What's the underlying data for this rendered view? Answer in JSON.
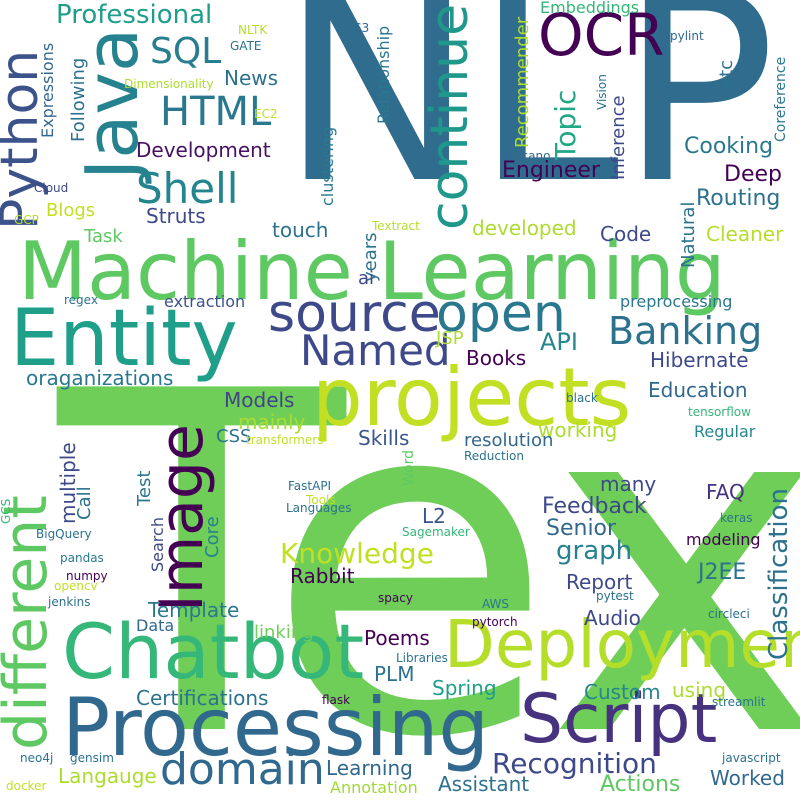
{
  "words": [
    {
      "text": "Text",
      "color": "#6ece58"
    },
    {
      "text": "NLP",
      "color": "#2f6c8e"
    },
    {
      "text": "Machine Learning",
      "color": "#5ec962"
    },
    {
      "text": "projects",
      "color": "#c2df23"
    },
    {
      "text": "Entity",
      "color": "#1f9e89"
    },
    {
      "text": "Processing",
      "color": "#31688e"
    },
    {
      "text": "Script",
      "color": "#46327e"
    },
    {
      "text": "Chatbot",
      "color": "#35b779"
    },
    {
      "text": "Deployment",
      "color": "#b5de2b"
    },
    {
      "text": "different",
      "color": "#5ec962"
    },
    {
      "text": "Image",
      "color": "#440154"
    },
    {
      "text": "Java",
      "color": "#26828e"
    },
    {
      "text": "Python",
      "color": "#3b528b"
    },
    {
      "text": "continue",
      "color": "#1f988b"
    },
    {
      "text": "OCR",
      "color": "#440154"
    },
    {
      "text": "source",
      "color": "#3e4989"
    },
    {
      "text": "open",
      "color": "#2a788e"
    },
    {
      "text": "domain",
      "color": "#31688e"
    },
    {
      "text": "Named",
      "color": "#3e4989"
    },
    {
      "text": "Banking",
      "color": "#2c728e"
    },
    {
      "text": "Shell",
      "color": "#25858e"
    },
    {
      "text": "HTML",
      "color": "#2a788e"
    },
    {
      "text": "SQL",
      "color": "#287d8e"
    },
    {
      "text": "Classification",
      "color": "#2c728e"
    },
    {
      "text": "Recognition",
      "color": "#3e4989"
    },
    {
      "text": "Knowledge",
      "color": "#c2df23"
    },
    {
      "text": "graph",
      "color": "#26828e"
    },
    {
      "text": "Professional",
      "color": "#1f9e89"
    },
    {
      "text": "Topic",
      "color": "#22a884"
    },
    {
      "text": "Engineer",
      "color": "#440154"
    },
    {
      "text": "Development",
      "color": "#471164"
    },
    {
      "text": "API",
      "color": "#24868e"
    },
    {
      "text": "Assistant",
      "color": "#2c728e"
    },
    {
      "text": "Actions",
      "color": "#5ec962"
    },
    {
      "text": "Cooking",
      "color": "#2a788e"
    },
    {
      "text": "Deep",
      "color": "#440154"
    },
    {
      "text": "Routing",
      "color": "#2c728e"
    },
    {
      "text": "Books",
      "color": "#440154"
    },
    {
      "text": "Hibernate",
      "color": "#3e4989"
    },
    {
      "text": "Education",
      "color": "#31688e"
    },
    {
      "text": "Models",
      "color": "#414487"
    },
    {
      "text": "mainly",
      "color": "#addc30"
    },
    {
      "text": "working",
      "color": "#addc30"
    },
    {
      "text": "Skills",
      "color": "#39568c"
    },
    {
      "text": "resolution",
      "color": "#31688e"
    },
    {
      "text": "Senior",
      "color": "#31688e"
    },
    {
      "text": "Feedback",
      "color": "#3e4989"
    },
    {
      "text": "FAQ",
      "color": "#46327e"
    },
    {
      "text": "Template",
      "color": "#2a788e"
    },
    {
      "text": "Rabbit",
      "color": "#440154"
    },
    {
      "text": "Report",
      "color": "#3e4989"
    },
    {
      "text": "J2EE",
      "color": "#2c728e"
    },
    {
      "text": "Audio",
      "color": "#3e4989"
    },
    {
      "text": "Custom",
      "color": "#24868e"
    },
    {
      "text": "Poems",
      "color": "#440154"
    },
    {
      "text": "Spring",
      "color": "#1f9e89"
    },
    {
      "text": "PLM",
      "color": "#2c728e"
    },
    {
      "text": "Certifications",
      "color": "#2c728e"
    },
    {
      "text": "oraganizations",
      "color": "#2a788e"
    },
    {
      "text": "extraction",
      "color": "#3b528b"
    },
    {
      "text": "preprocessing",
      "color": "#2a788e"
    },
    {
      "text": "Code",
      "color": "#3e4989"
    },
    {
      "text": "Cleaner",
      "color": "#b5de2b"
    },
    {
      "text": "developed",
      "color": "#addc30"
    },
    {
      "text": "touch",
      "color": "#2c728e"
    },
    {
      "text": "Task",
      "color": "#5ec962"
    },
    {
      "text": "Blogs",
      "color": "#c2df23"
    },
    {
      "text": "Struts",
      "color": "#3e4989"
    },
    {
      "text": "News",
      "color": "#2c728e"
    },
    {
      "text": "Langauge",
      "color": "#addc30"
    },
    {
      "text": "Learning",
      "color": "#31688e"
    },
    {
      "text": "Worked",
      "color": "#31688e"
    },
    {
      "text": "Annotation",
      "color": "#a0da39"
    },
    {
      "text": "using",
      "color": "#addc30"
    },
    {
      "text": "linking",
      "color": "#6ece58"
    },
    {
      "text": "many",
      "color": "#3e4989"
    },
    {
      "text": "modeling",
      "color": "#440154"
    },
    {
      "text": "Regular",
      "color": "#24868e"
    },
    {
      "text": "CSS",
      "color": "#2c728e"
    },
    {
      "text": "L2",
      "color": "#39568c"
    },
    {
      "text": "Core",
      "color": "#26828e"
    },
    {
      "text": "Data",
      "color": "#31688e"
    },
    {
      "text": "Call",
      "color": "#2c728e"
    },
    {
      "text": "Test",
      "color": "#2a788e"
    },
    {
      "text": "multiple",
      "color": "#3e4989"
    },
    {
      "text": "Search",
      "color": "#3e4989"
    },
    {
      "text": "years",
      "color": "#2c728e"
    },
    {
      "text": "ai",
      "color": "#3e4989"
    },
    {
      "text": "JSP",
      "color": "#addc30"
    },
    {
      "text": "Natural",
      "color": "#2c728e"
    },
    {
      "text": "Inference",
      "color": "#3e4989"
    },
    {
      "text": "Recommender",
      "color": "#addc30"
    },
    {
      "text": "etc",
      "color": "#2c728e"
    },
    {
      "text": "Coreference",
      "color": "#2a788e"
    },
    {
      "text": "Embeddings",
      "color": "#35b779"
    },
    {
      "text": "Following",
      "color": "#2c728e"
    },
    {
      "text": "Expressions",
      "color": "#31688e"
    },
    {
      "text": "Relationship",
      "color": "#2a788e"
    },
    {
      "text": "clustering",
      "color": "#2a788e"
    },
    {
      "text": "Dimensionality",
      "color": "#addc30"
    },
    {
      "text": "NLTK",
      "color": "#b5de2b"
    },
    {
      "text": "GATE",
      "color": "#2c728e"
    },
    {
      "text": "S3",
      "color": "#31688e"
    },
    {
      "text": "pylint",
      "color": "#31688e"
    },
    {
      "text": "Vision",
      "color": "#2c728e"
    },
    {
      "text": "doccano",
      "color": "#31688e"
    },
    {
      "text": "EC2",
      "color": "#c2df23"
    },
    {
      "text": "Cloud",
      "color": "#3e4989"
    },
    {
      "text": "GCP",
      "color": "#b5de2b"
    },
    {
      "text": "Textract",
      "color": "#b5de2b"
    },
    {
      "text": "regex",
      "color": "#2c728e"
    },
    {
      "text": "black",
      "color": "#2c728e"
    },
    {
      "text": "tensorflow",
      "color": "#35b779"
    },
    {
      "text": "transformers",
      "color": "#c2df23"
    },
    {
      "text": "Word",
      "color": "#5ec962"
    },
    {
      "text": "Reduction",
      "color": "#2c728e"
    },
    {
      "text": "FastAPI",
      "color": "#2c728e"
    },
    {
      "text": "Tools",
      "color": "#c2df23"
    },
    {
      "text": "Languages",
      "color": "#2c728e"
    },
    {
      "text": "Sagemaker",
      "color": "#35b779"
    },
    {
      "text": "keras",
      "color": "#2c728e"
    },
    {
      "text": "GCS",
      "color": "#35b779"
    },
    {
      "text": "BigQuery",
      "color": "#2c728e"
    },
    {
      "text": "pandas",
      "color": "#2a788e"
    },
    {
      "text": "numpy",
      "color": "#440154"
    },
    {
      "text": "opencv",
      "color": "#c2df23"
    },
    {
      "text": "jenkins",
      "color": "#2c728e"
    },
    {
      "text": "spacy",
      "color": "#440154"
    },
    {
      "text": "pytest",
      "color": "#2c728e"
    },
    {
      "text": "AWS",
      "color": "#2a788e"
    },
    {
      "text": "circleci",
      "color": "#2c728e"
    },
    {
      "text": "pytorch",
      "color": "#440154"
    },
    {
      "text": "Libraries",
      "color": "#2c728e"
    },
    {
      "text": "flask",
      "color": "#440154"
    },
    {
      "text": "streamlit",
      "color": "#2c728e"
    },
    {
      "text": "neo4j",
      "color": "#2c728e"
    },
    {
      "text": "gensim",
      "color": "#2c728e"
    },
    {
      "text": "javascript",
      "color": "#2c728e"
    },
    {
      "text": "docker",
      "color": "#c2df23"
    }
  ]
}
